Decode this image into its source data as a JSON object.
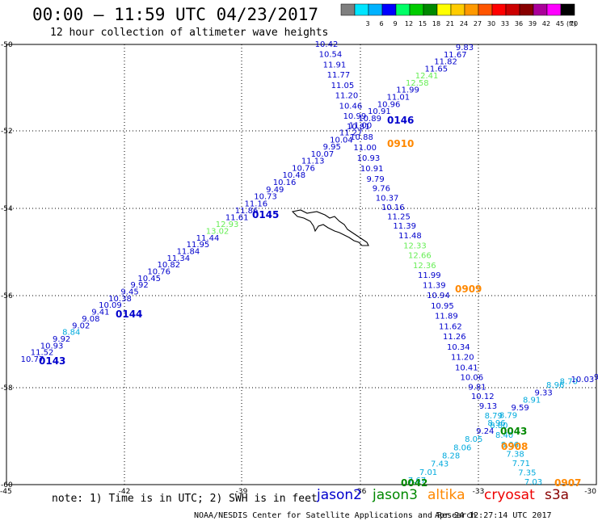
{
  "header": {
    "title": "00:00 – 11:59 UTC 04/23/2017",
    "subtitle": "12 hour collection of altimeter wave heights"
  },
  "legend": {
    "unit": "(ft)",
    "bins": [
      {
        "label": "",
        "color": "#7f7f7f"
      },
      {
        "label": "3",
        "color": "#00e5ff"
      },
      {
        "label": "6",
        "color": "#00b2ff"
      },
      {
        "label": "9",
        "color": "#0000ff"
      },
      {
        "label": "12",
        "color": "#00ff66"
      },
      {
        "label": "15",
        "color": "#00cc00"
      },
      {
        "label": "18",
        "color": "#008800"
      },
      {
        "label": "21",
        "color": "#ffff00"
      },
      {
        "label": "24",
        "color": "#ffcc00"
      },
      {
        "label": "27",
        "color": "#ff9900"
      },
      {
        "label": "30",
        "color": "#ff5500"
      },
      {
        "label": "33",
        "color": "#ff0000"
      },
      {
        "label": "36",
        "color": "#cc0000"
      },
      {
        "label": "39",
        "color": "#880000"
      },
      {
        "label": "42",
        "color": "#aa0099"
      },
      {
        "label": "45",
        "color": "#ff00ff"
      },
      {
        "label": "70",
        "color": "#000000"
      }
    ]
  },
  "axes": {
    "lon_ticks": [
      "-45",
      "-42",
      "-39",
      "-36",
      "-33",
      "-30"
    ],
    "lat_ticks": [
      "-50",
      "-52",
      "-54",
      "-56",
      "-58",
      "-60"
    ]
  },
  "colors": {
    "jason2": "#0000cc",
    "jason3": "#008800",
    "altika": "#ff8800",
    "cryosat": "#ee0000",
    "s3a": "#880000",
    "green_light": "#66ee55",
    "cyan": "#00aadd",
    "coast": "#000000"
  },
  "tracks": [
    {
      "name": "track-a",
      "labels": [
        {
          "v": "10.77",
          "c": "#0000cc"
        },
        {
          "v": "11.52",
          "c": "#0000cc"
        },
        {
          "v": "10.93",
          "c": "#0000cc"
        },
        {
          "v": "9.92",
          "c": "#0000cc"
        },
        {
          "v": "8.84",
          "c": "#00aadd"
        },
        {
          "v": "9.02",
          "c": "#0000cc"
        },
        {
          "v": "9.08",
          "c": "#0000cc"
        },
        {
          "v": "9.41",
          "c": "#0000cc"
        },
        {
          "v": "10.09",
          "c": "#0000cc"
        },
        {
          "v": "10.38",
          "c": "#0000cc"
        },
        {
          "v": "9.45",
          "c": "#0000cc"
        },
        {
          "v": "9.92",
          "c": "#0000cc"
        },
        {
          "v": "10.45",
          "c": "#0000cc"
        },
        {
          "v": "10.76",
          "c": "#0000cc"
        },
        {
          "v": "10.82",
          "c": "#0000cc"
        },
        {
          "v": "11.34",
          "c": "#0000cc"
        },
        {
          "v": "11.84",
          "c": "#0000cc"
        },
        {
          "v": "11.95",
          "c": "#0000cc"
        },
        {
          "v": "11.44",
          "c": "#0000cc"
        },
        {
          "v": "13.02",
          "c": "#66ee55"
        },
        {
          "v": "12.93",
          "c": "#66ee55"
        },
        {
          "v": "11.61",
          "c": "#0000cc"
        },
        {
          "v": "11.86",
          "c": "#0000cc"
        },
        {
          "v": "11.16",
          "c": "#0000cc"
        },
        {
          "v": "10.73",
          "c": "#0000cc"
        },
        {
          "v": "9.49",
          "c": "#0000cc"
        },
        {
          "v": "10.16",
          "c": "#0000cc"
        },
        {
          "v": "10.48",
          "c": "#0000cc"
        },
        {
          "v": "10.76",
          "c": "#0000cc"
        },
        {
          "v": "11.13",
          "c": "#0000cc"
        },
        {
          "v": "10.07",
          "c": "#0000cc"
        },
        {
          "v": "9.95",
          "c": "#0000cc"
        },
        {
          "v": "10.04",
          "c": "#0000cc"
        },
        {
          "v": "11.27",
          "c": "#0000cc"
        },
        {
          "v": "11.00",
          "c": "#0000cc"
        },
        {
          "v": "10.89",
          "c": "#0000cc"
        },
        {
          "v": "10.91",
          "c": "#0000cc"
        },
        {
          "v": "10.96",
          "c": "#0000cc"
        },
        {
          "v": "11.01",
          "c": "#0000cc"
        },
        {
          "v": "11.99",
          "c": "#0000cc"
        },
        {
          "v": "12.58",
          "c": "#66ee55"
        },
        {
          "v": "12.41",
          "c": "#66ee55"
        },
        {
          "v": "11.65",
          "c": "#0000cc"
        },
        {
          "v": "11.82",
          "c": "#0000cc"
        },
        {
          "v": "11.67",
          "c": "#0000cc"
        },
        {
          "v": "9.83",
          "c": "#0000cc"
        }
      ]
    },
    {
      "name": "track-b",
      "labels": [
        {
          "v": "10.42",
          "c": "#0000cc"
        },
        {
          "v": "10.54",
          "c": "#0000cc"
        },
        {
          "v": "11.91",
          "c": "#0000cc"
        },
        {
          "v": "11.77",
          "c": "#0000cc"
        },
        {
          "v": "11.05",
          "c": "#0000cc"
        },
        {
          "v": "11.20",
          "c": "#0000cc"
        },
        {
          "v": "10.46",
          "c": "#0000cc"
        },
        {
          "v": "10.99",
          "c": "#0000cc"
        },
        {
          "v": "10.81",
          "c": "#0000cc"
        },
        {
          "v": "10.88",
          "c": "#0000cc"
        },
        {
          "v": "11.00",
          "c": "#0000cc"
        },
        {
          "v": "10.93",
          "c": "#0000cc"
        },
        {
          "v": "10.91",
          "c": "#0000cc"
        },
        {
          "v": "9.79",
          "c": "#0000cc"
        },
        {
          "v": "9.76",
          "c": "#0000cc"
        },
        {
          "v": "10.37",
          "c": "#0000cc"
        },
        {
          "v": "10.16",
          "c": "#0000cc"
        },
        {
          "v": "11.25",
          "c": "#0000cc"
        },
        {
          "v": "11.39",
          "c": "#0000cc"
        },
        {
          "v": "11.48",
          "c": "#0000cc"
        },
        {
          "v": "12.33",
          "c": "#66ee55"
        },
        {
          "v": "12.66",
          "c": "#66ee55"
        },
        {
          "v": "12.36",
          "c": "#66ee55"
        },
        {
          "v": "11.99",
          "c": "#0000cc"
        },
        {
          "v": "11.39",
          "c": "#0000cc"
        },
        {
          "v": "10.94",
          "c": "#0000cc"
        },
        {
          "v": "10.95",
          "c": "#0000cc"
        },
        {
          "v": "11.89",
          "c": "#0000cc"
        },
        {
          "v": "11.62",
          "c": "#0000cc"
        },
        {
          "v": "11.26",
          "c": "#0000cc"
        },
        {
          "v": "10.34",
          "c": "#0000cc"
        },
        {
          "v": "11.20",
          "c": "#0000cc"
        },
        {
          "v": "10.41",
          "c": "#0000cc"
        },
        {
          "v": "10.06",
          "c": "#0000cc"
        },
        {
          "v": "9.81",
          "c": "#0000cc"
        },
        {
          "v": "10.12",
          "c": "#0000cc"
        },
        {
          "v": "9.13",
          "c": "#0000cc"
        },
        {
          "v": "8.79",
          "c": "#00aadd"
        },
        {
          "v": "8.80",
          "c": "#00aadd"
        },
        {
          "v": "8.40",
          "c": "#00aadd"
        },
        {
          "v": "8.06",
          "c": "#00aadd"
        },
        {
          "v": "7.38",
          "c": "#00aadd"
        },
        {
          "v": "7.71",
          "c": "#00aadd"
        },
        {
          "v": "7.35",
          "c": "#00aadd"
        },
        {
          "v": "7.03",
          "c": "#00aadd"
        }
      ]
    },
    {
      "name": "track-c",
      "labels": [
        {
          "v": "7.67",
          "c": "#00aadd"
        },
        {
          "v": "7.01",
          "c": "#00aadd"
        },
        {
          "v": "7.43",
          "c": "#00aadd"
        },
        {
          "v": "8.28",
          "c": "#00aadd"
        },
        {
          "v": "8.06",
          "c": "#00aadd"
        },
        {
          "v": "8.05",
          "c": "#00aadd"
        },
        {
          "v": "9.24",
          "c": "#0000cc"
        },
        {
          "v": "8.96",
          "c": "#00aadd"
        },
        {
          "v": "8.79",
          "c": "#00aadd"
        },
        {
          "v": "9.59",
          "c": "#0000cc"
        },
        {
          "v": "8.91",
          "c": "#00aadd"
        },
        {
          "v": "9.33",
          "c": "#0000cc"
        },
        {
          "v": "8.96",
          "c": "#00aadd"
        },
        {
          "v": "8.70",
          "c": "#00aadd"
        },
        {
          "v": "10.03",
          "c": "#0000cc"
        },
        {
          "v": "9",
          "c": "#0000cc"
        }
      ]
    }
  ],
  "pass_labels": [
    {
      "v": "0143",
      "c": "#0000cc"
    },
    {
      "v": "0144",
      "c": "#0000cc"
    },
    {
      "v": "0145",
      "c": "#0000cc"
    },
    {
      "v": "0146",
      "c": "#0000cc"
    },
    {
      "v": "0910",
      "c": "#ff8800"
    },
    {
      "v": "0909",
      "c": "#ff8800"
    },
    {
      "v": "0043",
      "c": "#008800"
    },
    {
      "v": "0908",
      "c": "#ff8800"
    },
    {
      "v": "0042",
      "c": "#008800"
    },
    {
      "v": "0907",
      "c": "#ff8800"
    }
  ],
  "footer": {
    "note": "note: 1) Time is in UTC; 2) SWH is in feet",
    "satellites": [
      {
        "name": "jason2",
        "color": "#0000cc"
      },
      {
        "name": "jason3",
        "color": "#008800"
      },
      {
        "name": "altika",
        "color": "#ff8800"
      },
      {
        "name": "cryosat",
        "color": "#ee0000"
      },
      {
        "name": "s3a",
        "color": "#880000"
      }
    ],
    "credit": "NOAA/NESDIS Center for Satellite Applications and Research",
    "timestamp": "Apr 24 12:27:14 UTC 2017"
  }
}
